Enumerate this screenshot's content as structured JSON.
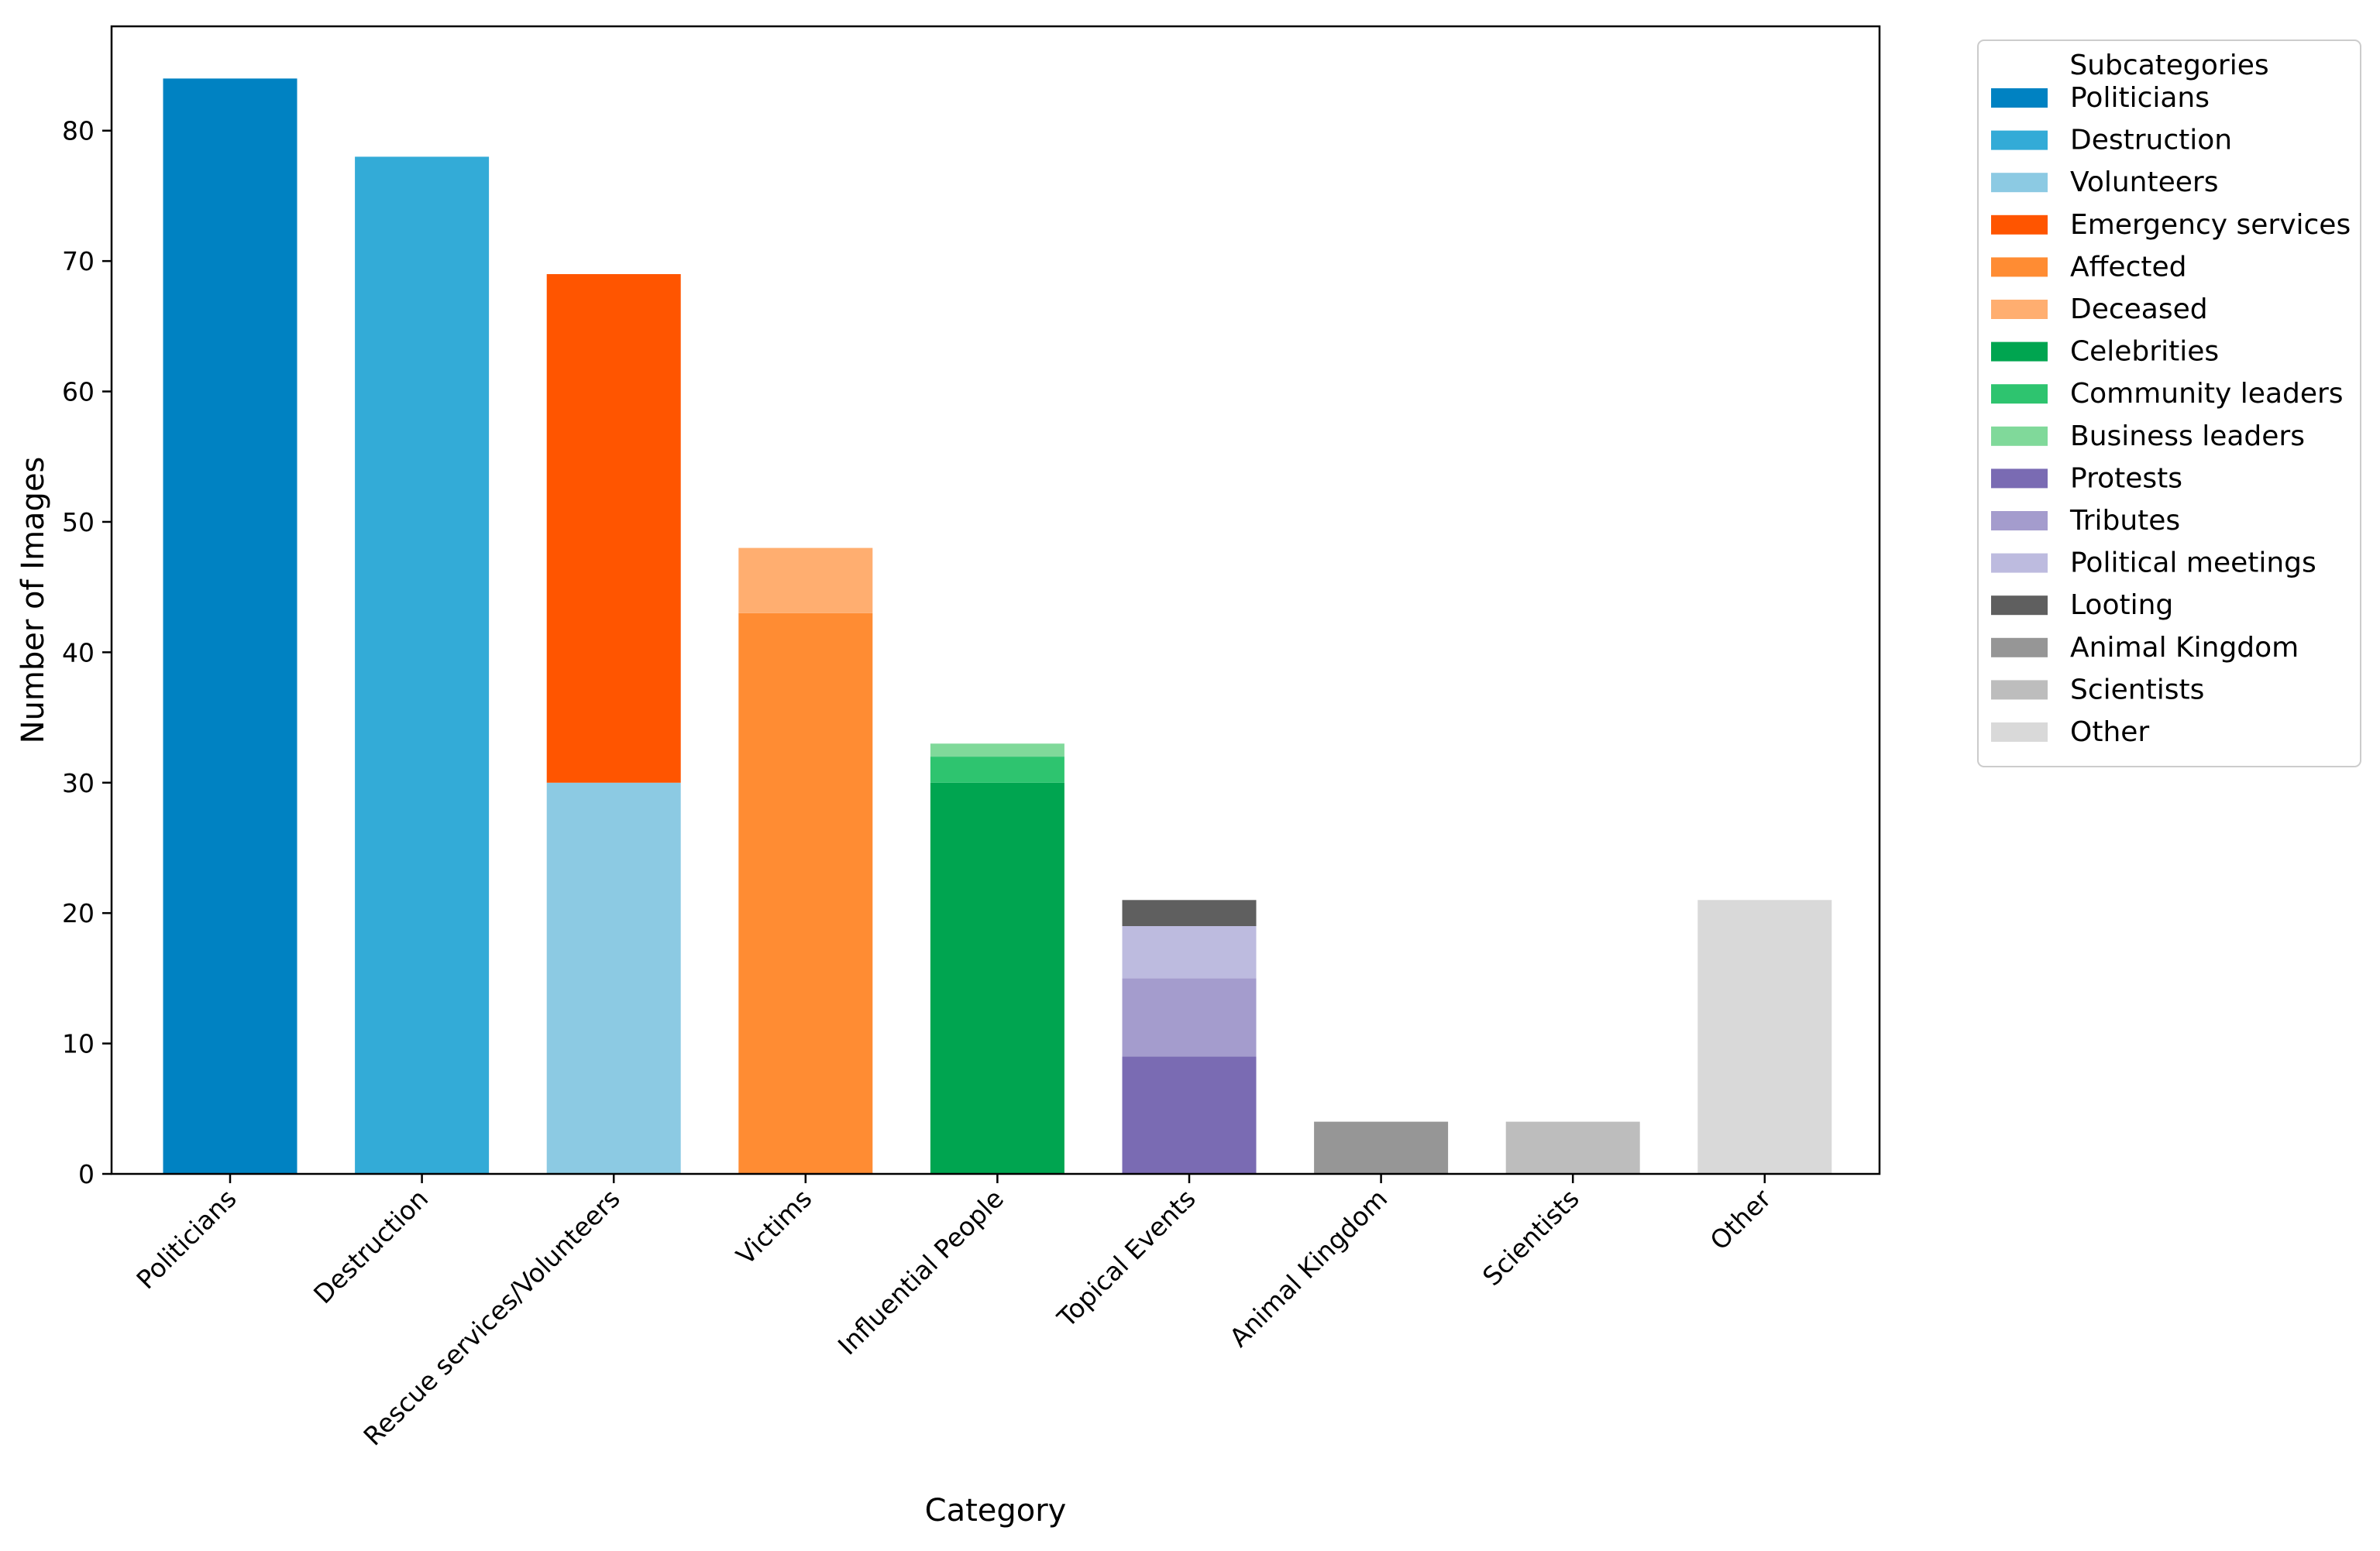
{
  "chart_data": {
    "type": "bar",
    "stacked": true,
    "xlabel": "Category",
    "ylabel": "Number of Images",
    "ylim": [
      0,
      88
    ],
    "yticks": [
      0,
      10,
      20,
      30,
      40,
      50,
      60,
      70,
      80
    ],
    "grid": false,
    "legend": {
      "title": "Subcategories",
      "placement": "outside-right-top"
    },
    "categories": [
      "Politicians",
      "Destruction",
      "Rescue services/Volunteers",
      "Victims",
      "Influential People",
      "Topical Events",
      "Animal Kingdom",
      "Scientists",
      "Other"
    ],
    "series": [
      {
        "name": "Politicians",
        "color": "#0082c2",
        "values": [
          84,
          0,
          0,
          0,
          0,
          0,
          0,
          0,
          0
        ]
      },
      {
        "name": "Destruction",
        "color": "#33abd7",
        "values": [
          0,
          78,
          0,
          0,
          0,
          0,
          0,
          0,
          0
        ]
      },
      {
        "name": "Volunteers",
        "color": "#8ccae3",
        "values": [
          0,
          0,
          30,
          0,
          0,
          0,
          0,
          0,
          0
        ]
      },
      {
        "name": "Emergency services",
        "color": "#ff5500",
        "values": [
          0,
          0,
          39,
          0,
          0,
          0,
          0,
          0,
          0
        ]
      },
      {
        "name": "Affected",
        "color": "#ff8c33",
        "values": [
          0,
          0,
          0,
          43,
          0,
          0,
          0,
          0,
          0
        ]
      },
      {
        "name": "Deceased",
        "color": "#ffae70",
        "values": [
          0,
          0,
          0,
          5,
          0,
          0,
          0,
          0,
          0
        ]
      },
      {
        "name": "Celebrities",
        "color": "#00a550",
        "values": [
          0,
          0,
          0,
          0,
          30,
          0,
          0,
          0,
          0
        ]
      },
      {
        "name": "Community leaders",
        "color": "#2ec46f",
        "values": [
          0,
          0,
          0,
          0,
          2,
          0,
          0,
          0,
          0
        ]
      },
      {
        "name": "Business leaders",
        "color": "#80d99a",
        "values": [
          0,
          0,
          0,
          0,
          1,
          0,
          0,
          0,
          0
        ]
      },
      {
        "name": "Protests",
        "color": "#7a6bb3",
        "values": [
          0,
          0,
          0,
          0,
          0,
          9,
          0,
          0,
          0
        ]
      },
      {
        "name": "Tributes",
        "color": "#a49ccd",
        "values": [
          0,
          0,
          0,
          0,
          0,
          6,
          0,
          0,
          0
        ]
      },
      {
        "name": "Political meetings",
        "color": "#bdbbdf",
        "values": [
          0,
          0,
          0,
          0,
          0,
          4,
          0,
          0,
          0
        ]
      },
      {
        "name": "Looting",
        "color": "#5f5f5f",
        "values": [
          0,
          0,
          0,
          0,
          0,
          2,
          0,
          0,
          0
        ]
      },
      {
        "name": "Animal Kingdom",
        "color": "#969696",
        "values": [
          0,
          0,
          0,
          0,
          0,
          0,
          4,
          0,
          0
        ]
      },
      {
        "name": "Scientists",
        "color": "#bdbdbd",
        "values": [
          0,
          0,
          0,
          0,
          0,
          0,
          0,
          4,
          0
        ]
      },
      {
        "name": "Other",
        "color": "#d9d9d9",
        "values": [
          0,
          0,
          0,
          0,
          0,
          0,
          0,
          0,
          21
        ]
      }
    ]
  }
}
